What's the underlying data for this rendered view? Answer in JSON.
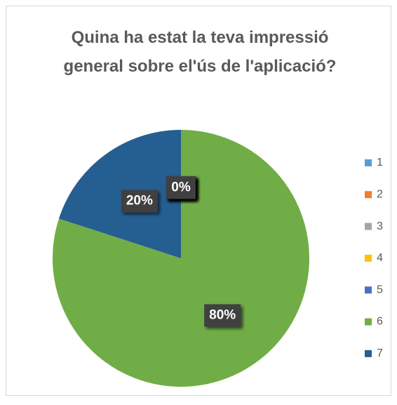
{
  "chart_data": {
    "type": "pie",
    "title": "Quina ha estat la teva impressió general sobre el'ús de l'aplicació?",
    "categories": [
      "1",
      "2",
      "3",
      "4",
      "5",
      "6",
      "7"
    ],
    "values": [
      0,
      0,
      0,
      0,
      0,
      80,
      20
    ],
    "value_labels": [
      "0%",
      "0%",
      "0%",
      "0%",
      "0%",
      "80%",
      "20%"
    ],
    "colors": [
      "#5b9bd5",
      "#ed7d31",
      "#a5a5a5",
      "#ffc000",
      "#4472c4",
      "#70ad47",
      "#255e91"
    ],
    "legend": "right"
  }
}
